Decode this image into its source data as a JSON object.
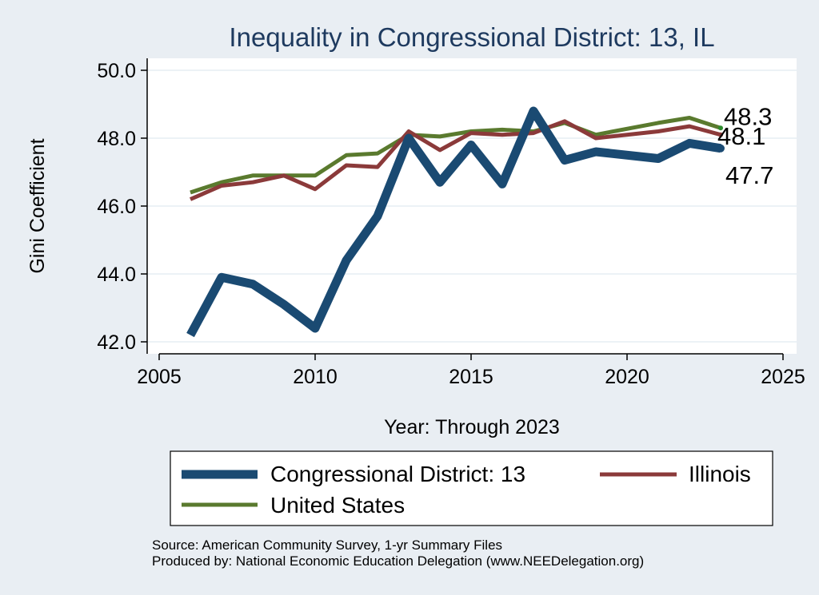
{
  "chart_data": {
    "type": "line",
    "title": "Inequality in Congressional District:  13, IL",
    "xlabel": "Year: Through 2023",
    "ylabel": "Gini Coefficient",
    "xlim": [
      2005,
      2025
    ],
    "ylim": [
      42.0,
      50.0
    ],
    "x_ticks": [
      2005,
      2010,
      2015,
      2020,
      2025
    ],
    "y_ticks": [
      {
        "value": 42.0,
        "label": "42.0"
      },
      {
        "value": 44.0,
        "label": "44.0"
      },
      {
        "value": 46.0,
        "label": "46.0"
      },
      {
        "value": 48.0,
        "label": "48.0"
      },
      {
        "value": 50.0,
        "label": "50.0"
      }
    ],
    "x": [
      2006,
      2007,
      2008,
      2009,
      2010,
      2011,
      2012,
      2013,
      2014,
      2015,
      2016,
      2017,
      2018,
      2019,
      2021,
      2022,
      2023
    ],
    "series": [
      {
        "name": "Congressional District:  13",
        "color": "#1a4a72",
        "values": [
          42.2,
          43.9,
          43.7,
          43.1,
          42.4,
          44.4,
          45.7,
          48.0,
          46.7,
          47.8,
          46.65,
          48.8,
          47.35,
          47.6,
          47.4,
          47.85,
          47.7
        ],
        "end_label": "47.7"
      },
      {
        "name": "Illinois",
        "color": "#8b3a3a",
        "values": [
          46.2,
          46.6,
          46.7,
          46.9,
          46.5,
          47.2,
          47.15,
          48.2,
          47.65,
          48.15,
          48.1,
          48.15,
          48.5,
          48.0,
          48.2,
          48.35,
          48.1
        ],
        "end_label": "48.1"
      },
      {
        "name": "United States",
        "color": "#5a7a2e",
        "values": [
          46.4,
          46.7,
          46.9,
          46.9,
          46.9,
          47.5,
          47.55,
          48.1,
          48.05,
          48.2,
          48.25,
          48.2,
          48.45,
          48.1,
          48.45,
          48.6,
          48.3
        ],
        "end_label": "48.3"
      }
    ],
    "legend_position": "bottom"
  },
  "source_note": "Source: American Community Survey, 1-yr Summary Files",
  "produced_note": "Produced by: National Economic Education Delegation (www.NEEDelegation.org)"
}
